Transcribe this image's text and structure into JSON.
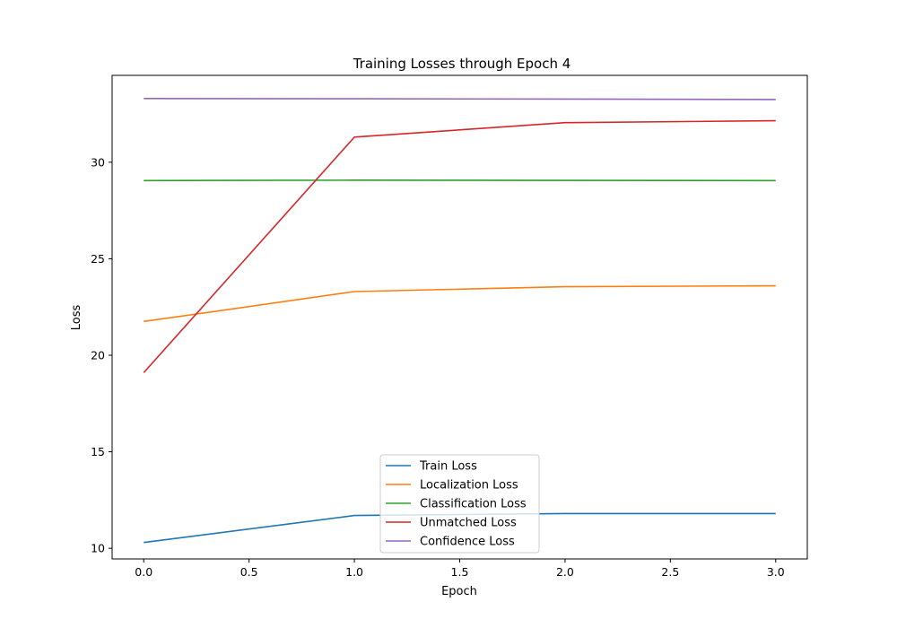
{
  "chart_data": {
    "type": "line",
    "title": "Training Losses through Epoch 4",
    "xlabel": "Epoch",
    "ylabel": "Loss",
    "xlim": [
      -0.15,
      3.15
    ],
    "ylim": [
      9.45,
      34.5
    ],
    "x_ticks": [
      0.0,
      0.5,
      1.0,
      1.5,
      2.0,
      2.5,
      3.0
    ],
    "x_tick_labels": [
      "0.0",
      "0.5",
      "1.0",
      "1.5",
      "2.0",
      "2.5",
      "3.0"
    ],
    "y_ticks": [
      10,
      15,
      20,
      25,
      30
    ],
    "y_tick_labels": [
      "10",
      "15",
      "20",
      "25",
      "30"
    ],
    "grid": false,
    "legend_position": "bottom-center",
    "x": [
      0,
      1,
      2,
      3
    ],
    "series": [
      {
        "name": "Train Loss",
        "color": "#1f77b4",
        "values": [
          10.3,
          11.7,
          11.8,
          11.8
        ]
      },
      {
        "name": "Localization Loss",
        "color": "#ff7f0e",
        "values": [
          21.75,
          23.3,
          23.55,
          23.6
        ]
      },
      {
        "name": "Classification Loss",
        "color": "#2ca02c",
        "values": [
          29.05,
          29.07,
          29.06,
          29.05
        ]
      },
      {
        "name": "Unmatched Loss",
        "color": "#d62728",
        "values": [
          19.1,
          31.3,
          32.05,
          32.15
        ]
      },
      {
        "name": "Confidence Loss",
        "color": "#9467bd",
        "values": [
          33.3,
          33.29,
          33.27,
          33.25
        ]
      }
    ]
  }
}
